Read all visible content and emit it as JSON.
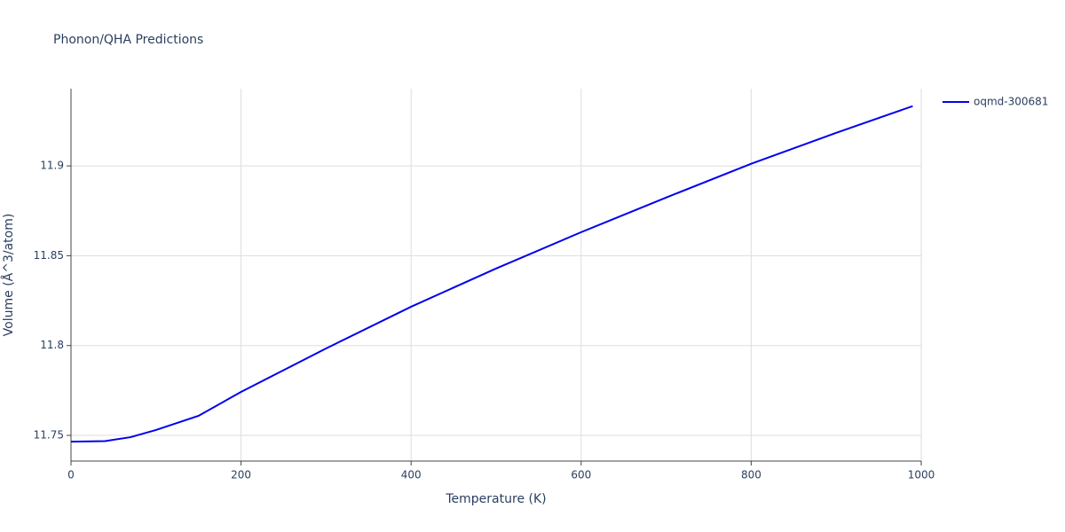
{
  "chart_data": {
    "type": "line",
    "title": "Phonon/QHA Predictions",
    "x_label": "Temperature (K)",
    "y_label": "Volume (Å^3/atom)",
    "x": [
      0,
      40,
      70,
      100,
      150,
      200,
      300,
      400,
      500,
      600,
      700,
      800,
      900,
      990
    ],
    "series": [
      {
        "name": "oqmd-300681",
        "color": "#0000ee",
        "values": [
          11.7465,
          11.7468,
          11.749,
          11.753,
          11.7609,
          11.7742,
          11.7984,
          11.8216,
          11.8429,
          11.8631,
          11.8824,
          11.9012,
          11.9184,
          11.9333
        ]
      }
    ],
    "xlim": [
      0,
      1000
    ],
    "xticks": [
      0,
      200,
      400,
      600,
      800,
      1000
    ],
    "ylim": [
      11.7357,
      11.943
    ],
    "yticks": [
      11.75,
      11.8,
      11.85,
      11.9
    ],
    "grid": true,
    "legend": "right"
  }
}
